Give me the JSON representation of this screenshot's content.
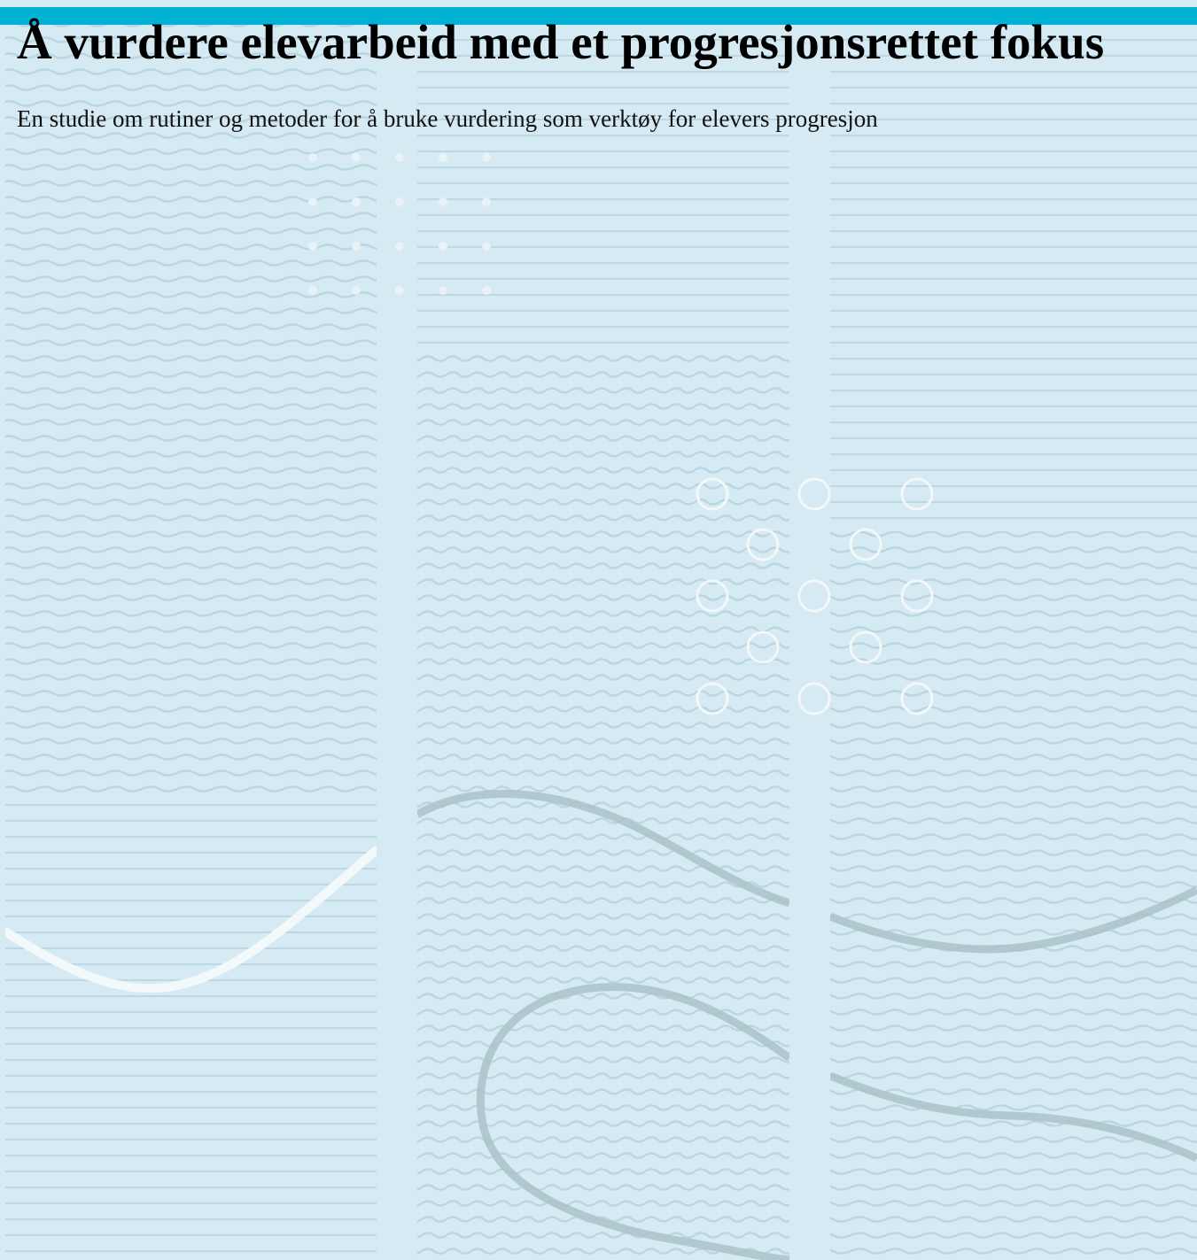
{
  "document": {
    "title": "Å vurdere elevarbeid med et progresjonsrettet fokus",
    "subtitle": "En studie om rutiner og metoder for å bruke vurdering som verktøy for elevers progresjon"
  },
  "colors": {
    "background": "#d6eaf3",
    "accent_bar": "#00b2d3",
    "wave_lines": "#b8d5e2",
    "dark_curve": "#a8c2c8",
    "light_curve": "#f3f8fa",
    "circles": "#f3f8fa"
  }
}
